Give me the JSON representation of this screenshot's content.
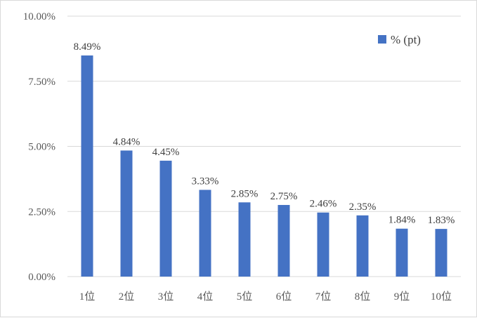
{
  "chart_data": {
    "type": "bar",
    "categories": [
      "1位",
      "2位",
      "3位",
      "4位",
      "5位",
      "6位",
      "7位",
      "8位",
      "9位",
      "10位"
    ],
    "series": [
      {
        "name": "% (pt)",
        "color": "#4472c4",
        "values": [
          8.49,
          4.84,
          4.45,
          3.33,
          2.85,
          2.75,
          2.46,
          2.35,
          1.84,
          1.83
        ],
        "labels": [
          "8.49%",
          "4.84%",
          "4.45%",
          "3.33%",
          "2.85%",
          "2.75%",
          "2.46%",
          "2.35%",
          "1.84%",
          "1.83%"
        ]
      }
    ],
    "ylim": [
      0,
      10
    ],
    "yticks": [
      0,
      2.5,
      5,
      7.5,
      10
    ],
    "ytick_labels": [
      "0.00%",
      "2.50%",
      "5.00%",
      "7.50%",
      "10.00%"
    ],
    "grid": true,
    "legend": "top-right",
    "gridline_color": "#d9d9d9"
  }
}
